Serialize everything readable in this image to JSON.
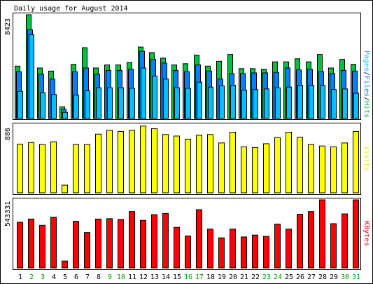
{
  "chart_data": [
    {
      "type": "bar",
      "title": "Daily usage for August 2014",
      "categories": [
        "1",
        "2",
        "3",
        "4",
        "5",
        "6",
        "7",
        "8",
        "9",
        "10",
        "11",
        "12",
        "13",
        "14",
        "15",
        "16",
        "17",
        "18",
        "19",
        "20",
        "21",
        "22",
        "23",
        "24",
        "25",
        "26",
        "27",
        "28",
        "29",
        "30",
        "31"
      ],
      "weekend_days": [
        "2",
        "3",
        "9",
        "10",
        "16",
        "17",
        "23",
        "24",
        "30",
        "31"
      ],
      "ymax_label": "8423",
      "ymax": 8423,
      "axis_label_parts": [
        {
          "text": "Pages",
          "color": "#00c0ff"
        },
        {
          "text": "/",
          "color": "#000000"
        },
        {
          "text": "Files",
          "color": "#0080ff"
        },
        {
          "text": "/",
          "color": "#000000"
        },
        {
          "text": "Hits",
          "color": "#00c040"
        }
      ],
      "series": [
        {
          "name": "Hits",
          "color": "#00c040",
          "values": [
            4250,
            8423,
            4100,
            3850,
            950,
            4400,
            5750,
            4100,
            4350,
            4350,
            4550,
            5800,
            5350,
            4900,
            4350,
            4450,
            5150,
            4250,
            4650,
            5200,
            4050,
            4050,
            4000,
            4600,
            4600,
            4850,
            4600,
            5200,
            4100,
            4800,
            4400
          ]
        },
        {
          "name": "Files",
          "color": "#0080ff",
          "values": [
            3800,
            7200,
            3600,
            3200,
            750,
            3800,
            4100,
            3600,
            3900,
            3900,
            4000,
            5450,
            4800,
            4500,
            3900,
            3800,
            4350,
            3850,
            3200,
            3650,
            3650,
            3700,
            3700,
            3750,
            4100,
            3950,
            4000,
            3800,
            3650,
            3900,
            3850
          ]
        },
        {
          "name": "Pages",
          "color": "#00c0ff",
          "values": [
            2200,
            6800,
            2100,
            1950,
            500,
            1900,
            2250,
            2500,
            2500,
            2500,
            2450,
            4100,
            3450,
            3200,
            2500,
            2450,
            2950,
            2550,
            2650,
            2700,
            2300,
            2350,
            2400,
            2500,
            2550,
            2700,
            2700,
            2700,
            2350,
            2400,
            2050
          ]
        }
      ]
    },
    {
      "type": "bar",
      "ymax_label": "886",
      "ymax": 886,
      "axis_label": "Visits",
      "axis_label_color": "#e8e800",
      "series": [
        {
          "name": "Visits",
          "color": "#ffff00",
          "values": [
            635,
            655,
            630,
            665,
            100,
            630,
            630,
            765,
            815,
            800,
            815,
            870,
            835,
            760,
            740,
            700,
            750,
            760,
            650,
            790,
            600,
            590,
            640,
            720,
            790,
            725,
            630,
            610,
            600,
            650,
            800
          ]
        }
      ]
    },
    {
      "type": "bar",
      "ymax_label": "543331",
      "ymax": 543331,
      "axis_label": "KBytes",
      "axis_label_color": "#e00000",
      "series": [
        {
          "name": "KBytes",
          "color": "#ff0000",
          "values": [
            365000,
            390000,
            340000,
            405000,
            55000,
            372000,
            282000,
            390000,
            393000,
            387000,
            450000,
            380000,
            425000,
            435000,
            324000,
            255000,
            465000,
            310000,
            240000,
            310000,
            247000,
            262000,
            252000,
            350000,
            310000,
            428000,
            450000,
            543331,
            353000,
            431000,
            543331
          ]
        }
      ]
    }
  ]
}
